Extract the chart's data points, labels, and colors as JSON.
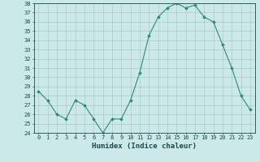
{
  "xlabel": "Humidex (Indice chaleur)",
  "x": [
    0,
    1,
    2,
    3,
    4,
    5,
    6,
    7,
    8,
    9,
    10,
    11,
    12,
    13,
    14,
    15,
    16,
    17,
    18,
    19,
    20,
    21,
    22,
    23
  ],
  "y": [
    28.5,
    27.5,
    26.0,
    25.5,
    27.5,
    27.0,
    25.5,
    24.0,
    25.5,
    25.5,
    27.5,
    30.5,
    34.5,
    36.5,
    37.5,
    38.0,
    37.5,
    37.8,
    36.5,
    36.0,
    33.5,
    31.0,
    28.0,
    26.5
  ],
  "line_color": "#2e8b7a",
  "marker": "D",
  "marker_size": 2,
  "ylim": [
    24,
    38
  ],
  "yticks": [
    24,
    25,
    26,
    27,
    28,
    29,
    30,
    31,
    32,
    33,
    34,
    35,
    36,
    37,
    38
  ],
  "xticks": [
    0,
    1,
    2,
    3,
    4,
    5,
    6,
    7,
    8,
    9,
    10,
    11,
    12,
    13,
    14,
    15,
    16,
    17,
    18,
    19,
    20,
    21,
    22,
    23
  ],
  "bg_color": "#cce8e8",
  "grid_color": "#aacccc",
  "tick_label_fontsize": 5,
  "xlabel_fontsize": 6.5,
  "line_width": 0.8
}
